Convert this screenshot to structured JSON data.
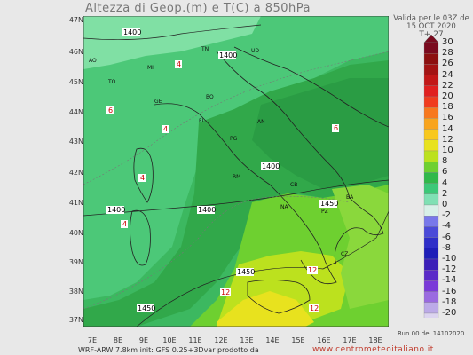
{
  "title": "Altezza di Geop.(m) e T(C) a 850hPa",
  "valid": {
    "line1": "Valida per le 03Z de",
    "line2": "15 OCT 2020",
    "line3": "T+ 27"
  },
  "lat_labels": [
    "47N",
    "46N",
    "45N",
    "44N",
    "43N",
    "42N",
    "41N",
    "40N",
    "39N",
    "38N",
    "37N"
  ],
  "lon_labels": [
    "7E",
    "8E",
    "9E",
    "10E",
    "11E",
    "12E",
    "13E",
    "14E",
    "15E",
    "16E",
    "17E",
    "18E"
  ],
  "colorbar": {
    "values": [
      "30",
      "28",
      "26",
      "24",
      "22",
      "20",
      "18",
      "16",
      "14",
      "12",
      "10",
      "8",
      "6",
      "4",
      "2",
      "0",
      "-2",
      "-4",
      "-6",
      "-8",
      "-10",
      "-12",
      "-14",
      "-16",
      "-18",
      "-20"
    ],
    "colors": [
      "#7a0a1e",
      "#8c1010",
      "#a31414",
      "#c21818",
      "#e02020",
      "#f03c1e",
      "#f7781e",
      "#f8a41e",
      "#f8c81e",
      "#e8e21e",
      "#bce11e",
      "#6ed030",
      "#30b84a",
      "#3cc878",
      "#80e0b4",
      "#d8f0e8",
      "#7878ea",
      "#4a4ad8",
      "#2e2ec8",
      "#1e1eb8",
      "#3a1eb8",
      "#5a2ac8",
      "#7a3ad8",
      "#9a6ae0",
      "#bcaae8",
      "#dcd4f0"
    ]
  },
  "contour_labels": [
    "1400",
    "1400",
    "1400",
    "1400",
    "1400",
    "1450",
    "1450",
    "1450"
  ],
  "temp_labels": [
    "4",
    "6",
    "4",
    "4",
    "4",
    "6",
    "12",
    "12",
    "12"
  ],
  "cities": [
    "AO",
    "TO",
    "MI",
    "BO",
    "FI",
    "PG",
    "RM",
    "CB",
    "NA",
    "BA",
    "PZ",
    "CZ",
    "AN",
    "TN",
    "UD",
    "GE"
  ],
  "footer": {
    "left": "WRF-ARW 7.8km init: GFS 0.25+3Dvar prodotto da",
    "right": "www.centrometeoitaliano.it",
    "run": "Run 00 del 14102020"
  }
}
